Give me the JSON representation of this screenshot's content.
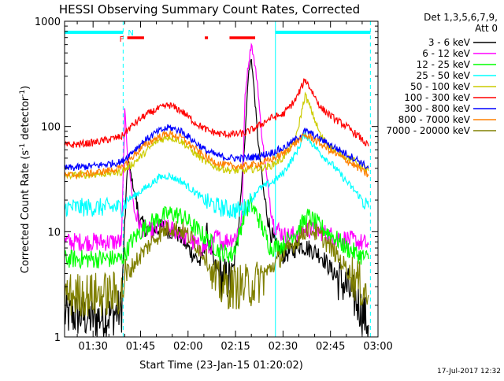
{
  "chart_data": {
    "type": "line",
    "title": "HESSI Observing Summary Count Rates, Corrected",
    "xlabel": "Start Time (23-Jan-15 01:20:02)",
    "ylabel": "Corrected Count Rate (s⁻¹ detector⁻¹)",
    "ylabel_parts": {
      "main": "Corrected Count Rate (s",
      "sup1": "-1",
      "mid": " detector",
      "sup2": "-1",
      "end": ")"
    },
    "y_scale": "log",
    "ylim": [
      1,
      1000
    ],
    "xlim_minutes": [
      1.0,
      100.0
    ],
    "x_tick_labels": [
      "01:30",
      "01:45",
      "02:00",
      "02:15",
      "02:30",
      "02:45",
      "03:00"
    ],
    "x_tick_minutes": [
      10,
      25,
      40,
      55,
      70,
      85,
      100
    ],
    "y_tick_labels": [
      "1",
      "10",
      "100",
      "1000"
    ],
    "y_tick_values": [
      1,
      10,
      100,
      1000
    ],
    "detector_info": [
      "Det 1,3,5,6,7,9,",
      "Att 0"
    ],
    "footer_date": "17-Jul-2017 12:32",
    "flags": {
      "flare_label": "F",
      "night_label": "N",
      "night_bars_minutes": [
        [
          1,
          19.5
        ],
        [
          67.6,
          97.6
        ]
      ],
      "flare_bars_minutes": [
        [
          20.8,
          26.1
        ],
        [
          45.3,
          46.3
        ],
        [
          53.1,
          61.2
        ]
      ],
      "night_boundaries_minutes": [
        19.5,
        67.6,
        97.6
      ],
      "night_color": "#00ffff",
      "flare_color": "#ff0000"
    },
    "series": [
      {
        "name": "3 - 6 keV",
        "color": "#000000",
        "x": [
          1,
          5,
          10,
          15,
          19,
          20,
          21,
          23,
          25,
          28,
          32,
          37,
          40,
          44,
          46,
          48,
          51,
          54,
          56,
          58,
          59,
          60,
          61,
          62,
          64,
          66,
          68,
          70,
          73,
          75,
          78,
          82,
          86,
          90,
          94,
          96,
          97
        ],
        "values": [
          1.6,
          1.6,
          1.5,
          1.6,
          1.8,
          12,
          50,
          24,
          12,
          10,
          11,
          9.5,
          7,
          5,
          10,
          5,
          3.5,
          3.5,
          12,
          80,
          300,
          450,
          200,
          80,
          22,
          10,
          7,
          6,
          6.5,
          7.5,
          7,
          6,
          4,
          3,
          2,
          1.5,
          1.3
        ]
      },
      {
        "name": "6 - 12 keV",
        "color": "#ff00ff",
        "x": [
          1,
          5,
          10,
          15,
          19,
          20,
          21,
          23,
          25,
          28,
          32,
          37,
          40,
          44,
          47,
          49,
          51,
          55,
          57,
          58,
          59,
          60,
          61,
          62,
          63,
          65,
          67,
          69,
          71,
          74,
          78,
          82,
          86,
          90,
          94,
          97
        ],
        "values": [
          8,
          8,
          8,
          8,
          8,
          140,
          50,
          16,
          11,
          10,
          11,
          10,
          8.5,
          7,
          7,
          9,
          8,
          9,
          13,
          200,
          380,
          620,
          400,
          250,
          100,
          30,
          12,
          10,
          9,
          9.5,
          10.5,
          10,
          9,
          8.5,
          8,
          7.5
        ]
      },
      {
        "name": "12 - 25 keV",
        "color": "#00ff00",
        "x": [
          1,
          10,
          19,
          20,
          22,
          25,
          28,
          32,
          35,
          38,
          42,
          46,
          50,
          54,
          56,
          58,
          60,
          62,
          64,
          66,
          70,
          74,
          78,
          82,
          86,
          90,
          94,
          97
        ],
        "values": [
          5.5,
          5.5,
          5.5,
          6,
          8,
          10,
          12,
          14,
          15,
          14,
          11,
          8.5,
          6.5,
          6,
          9,
          16,
          18,
          14,
          10,
          7,
          7.5,
          10,
          14,
          11,
          9,
          7,
          6,
          5.5
        ]
      },
      {
        "name": "25 - 50 keV",
        "color": "#00ffff",
        "x": [
          1,
          10,
          19,
          21,
          24,
          28,
          31,
          34,
          38,
          42,
          46,
          50,
          54,
          56,
          58,
          60,
          62,
          64,
          67,
          70,
          74,
          77,
          79,
          82,
          86,
          90,
          94,
          97
        ],
        "values": [
          17,
          17,
          17,
          20,
          23,
          28,
          33,
          34,
          30,
          24,
          19,
          17,
          16,
          16,
          17,
          20,
          25,
          27,
          30,
          36,
          55,
          85,
          70,
          55,
          42,
          30,
          22,
          17
        ]
      },
      {
        "name": "50 - 100 keV",
        "color": "#cccc00",
        "x": [
          1,
          10,
          19,
          22,
          26,
          30,
          34,
          38,
          42,
          46,
          50,
          54,
          58,
          62,
          66,
          70,
          74,
          77,
          79,
          82,
          86,
          90,
          94,
          97
        ],
        "values": [
          34,
          35,
          37,
          43,
          55,
          72,
          80,
          72,
          56,
          45,
          40,
          38,
          38,
          40,
          42,
          50,
          75,
          200,
          140,
          80,
          60,
          52,
          44,
          38
        ]
      },
      {
        "name": "100 - 300 keV",
        "color": "#ff0000",
        "x": [
          1,
          10,
          19,
          22,
          26,
          30,
          34,
          38,
          42,
          46,
          50,
          54,
          58,
          62,
          66,
          70,
          74,
          77,
          79,
          82,
          86,
          90,
          94,
          97
        ],
        "values": [
          66,
          70,
          80,
          100,
          125,
          145,
          160,
          140,
          110,
          92,
          85,
          84,
          86,
          100,
          120,
          130,
          180,
          280,
          220,
          150,
          120,
          100,
          80,
          65
        ]
      },
      {
        "name": "300 - 800 keV",
        "color": "#0000ff",
        "x": [
          1,
          10,
          19,
          22,
          26,
          30,
          34,
          38,
          42,
          46,
          50,
          54,
          58,
          62,
          66,
          70,
          74,
          77,
          79,
          82,
          86,
          90,
          94,
          97
        ],
        "values": [
          40,
          42,
          46,
          56,
          72,
          88,
          98,
          90,
          72,
          58,
          52,
          50,
          50,
          52,
          56,
          62,
          75,
          90,
          85,
          75,
          64,
          55,
          47,
          40
        ]
      },
      {
        "name": "800 - 7000 keV",
        "color": "#ff8000",
        "x": [
          1,
          10,
          19,
          22,
          26,
          30,
          34,
          38,
          42,
          46,
          50,
          54,
          58,
          62,
          66,
          70,
          74,
          77,
          79,
          82,
          86,
          90,
          94,
          97
        ],
        "values": [
          34,
          36,
          40,
          50,
          65,
          78,
          86,
          78,
          62,
          50,
          44,
          42,
          42,
          44,
          48,
          55,
          70,
          82,
          78,
          68,
          56,
          48,
          40,
          34
        ]
      },
      {
        "name": "7000 - 20000 keV",
        "color": "#808000",
        "x": [
          1,
          10,
          19,
          20,
          23,
          26,
          30,
          34,
          38,
          42,
          46,
          48,
          51,
          54,
          58,
          62,
          66,
          70,
          74,
          78,
          82,
          86,
          90,
          94,
          97
        ],
        "values": [
          2.5,
          2.5,
          2.6,
          3.5,
          5,
          6.5,
          9,
          11,
          10.5,
          8,
          5.5,
          3.5,
          3,
          3,
          3,
          3.3,
          4.5,
          6,
          8,
          11,
          9,
          6.5,
          4.5,
          3.2,
          2.5
        ]
      }
    ]
  }
}
